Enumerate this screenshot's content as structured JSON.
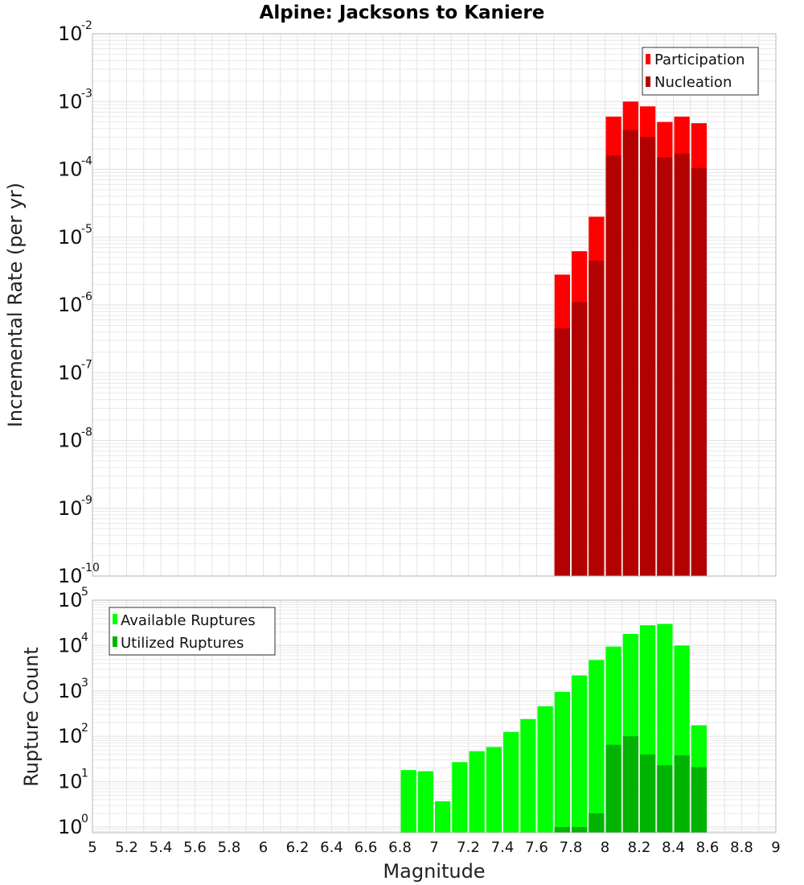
{
  "chart_data": [
    {
      "type": "bar",
      "title": "Alpine: Jacksons to Kaniere",
      "ylabel": "Incremental Rate (per yr)",
      "xlabel": "",
      "yscale": "log",
      "ylim": [
        1e-10,
        0.01
      ],
      "xlim": [
        5,
        9
      ],
      "bin_width": 0.1,
      "grid": true,
      "legend_position": "top-right",
      "x": [
        7.75,
        7.85,
        7.95,
        8.05,
        8.15,
        8.25,
        8.35,
        8.45,
        8.55
      ],
      "series": [
        {
          "name": "Participation",
          "color": "#ff0000",
          "values": [
            2.8e-06,
            6.2e-06,
            2e-05,
            0.0006,
            0.001,
            0.00085,
            0.0005,
            0.0006,
            0.00048
          ]
        },
        {
          "name": "Nucleation",
          "color": "#b30000",
          "values": [
            4.5e-07,
            1.1e-06,
            4.5e-06,
            0.00016,
            0.00038,
            0.0003,
            0.00015,
            0.00017,
            0.000105
          ]
        }
      ]
    },
    {
      "type": "bar",
      "title": "",
      "ylabel": "Rupture Count",
      "xlabel": "Magnitude",
      "yscale": "log",
      "ylim": [
        0.75,
        100000.0
      ],
      "xlim": [
        5,
        9
      ],
      "bin_width": 0.1,
      "grid": true,
      "legend_position": "top-left",
      "x": [
        6.85,
        6.95,
        7.05,
        7.15,
        7.25,
        7.35,
        7.45,
        7.55,
        7.65,
        7.75,
        7.85,
        7.95,
        8.05,
        8.15,
        8.25,
        8.35,
        8.45,
        8.55
      ],
      "series": [
        {
          "name": "Available Ruptures",
          "color": "#00ff00",
          "values": [
            18,
            17,
            3.7,
            27,
            47,
            58,
            125,
            240,
            460,
            950,
            2200,
            4800,
            9500,
            18000,
            28000,
            30000,
            10000,
            175
          ]
        },
        {
          "name": "Utilized Ruptures",
          "color": "#00b300",
          "values": [
            0,
            0,
            0,
            0,
            0,
            0,
            0,
            0,
            0,
            1,
            1,
            2,
            65,
            100,
            40,
            23,
            38,
            21
          ]
        }
      ]
    }
  ],
  "x_ticks": [
    "5",
    "5.2",
    "5.4",
    "5.6",
    "5.8",
    "6",
    "6.2",
    "6.4",
    "6.6",
    "6.8",
    "7",
    "7.2",
    "7.4",
    "7.6",
    "7.8",
    "8",
    "8.2",
    "8.4",
    "8.6",
    "8.8",
    "9"
  ],
  "top_y_ticks": [
    {
      "base": "10",
      "exp": "-2"
    },
    {
      "base": "10",
      "exp": "-3"
    },
    {
      "base": "10",
      "exp": "-4"
    },
    {
      "base": "10",
      "exp": "-5"
    },
    {
      "base": "10",
      "exp": "-6"
    },
    {
      "base": "10",
      "exp": "-7"
    },
    {
      "base": "10",
      "exp": "-8"
    },
    {
      "base": "10",
      "exp": "-9"
    },
    {
      "base": "10",
      "exp": "-10"
    }
  ],
  "bottom_y_ticks": [
    {
      "base": "10",
      "exp": "5"
    },
    {
      "base": "10",
      "exp": "4"
    },
    {
      "base": "10",
      "exp": "3"
    },
    {
      "base": "10",
      "exp": "2"
    },
    {
      "base": "10",
      "exp": "1"
    },
    {
      "base": "10",
      "exp": "0"
    }
  ],
  "colors": {
    "grid": "#e4e4e4",
    "frame": "#b8b8b8"
  }
}
